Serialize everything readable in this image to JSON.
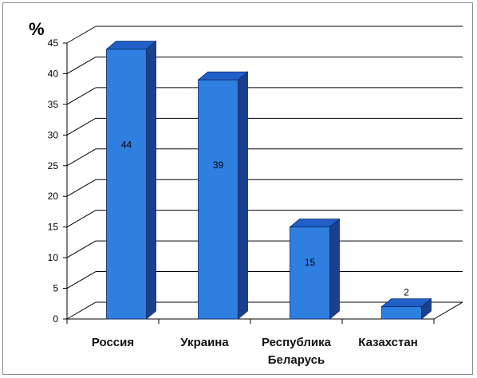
{
  "chart_data": {
    "type": "bar",
    "unit_label": "%",
    "categories": [
      [
        "Россия"
      ],
      [
        "Украина"
      ],
      [
        "Республика",
        "Беларусь"
      ],
      [
        "Казахстан"
      ]
    ],
    "values": [
      44,
      39,
      15,
      2
    ],
    "data_labels": [
      "44",
      "39",
      "15",
      "2"
    ],
    "ylim": [
      0,
      45
    ],
    "yticks": [
      "0",
      "5",
      "10",
      "15",
      "20",
      "25",
      "30",
      "35",
      "40",
      "45"
    ],
    "grid": true,
    "style": "3d-column",
    "colors": {
      "bar_front": "#2e7fe0",
      "bar_side": "#1c3f8e",
      "bar_top": "#2060c8",
      "grid": "#000000"
    }
  }
}
